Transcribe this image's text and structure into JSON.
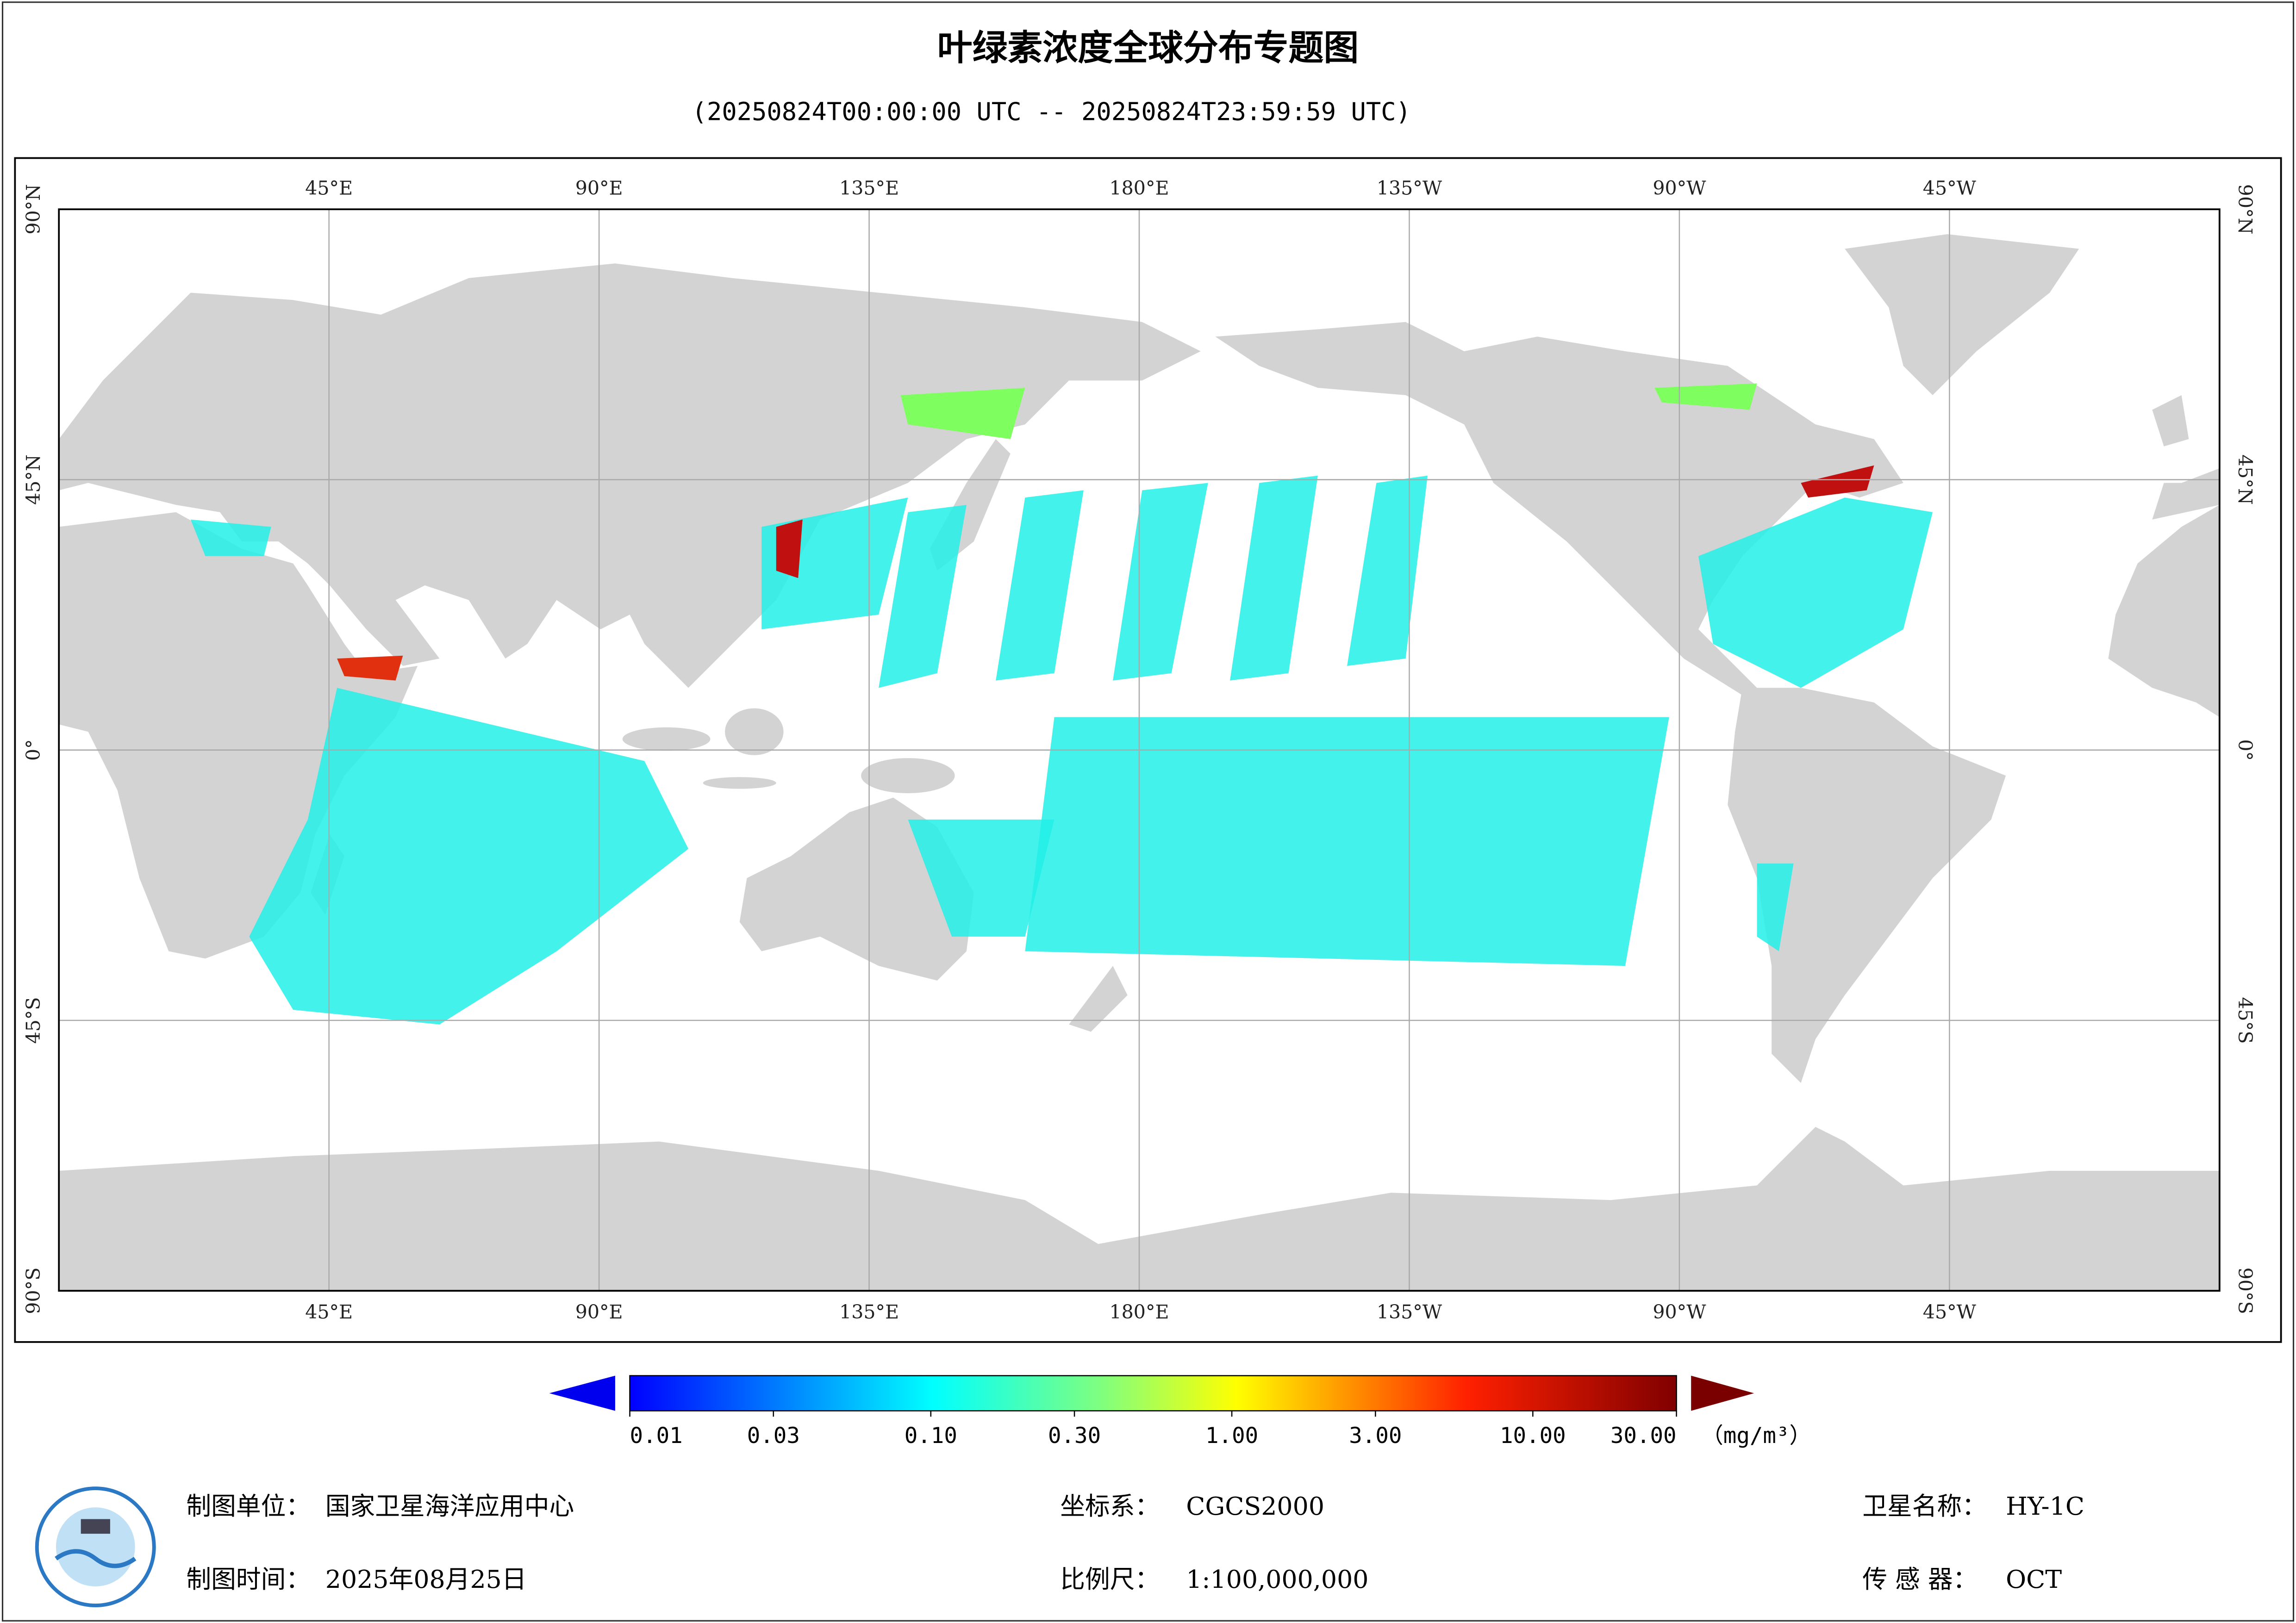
{
  "header": {
    "title": "叶绿素浓度全球分布专题图",
    "subtitle": "(20250824T00:00:00 UTC -- 20250824T23:59:59 UTC)"
  },
  "map": {
    "lon_ticks": [
      {
        "value": 45,
        "label": "45°E"
      },
      {
        "value": 90,
        "label": "90°E"
      },
      {
        "value": 135,
        "label": "135°E"
      },
      {
        "value": 180,
        "label": "180°E"
      },
      {
        "value": 225,
        "label": "135°W"
      },
      {
        "value": 270,
        "label": "90°W"
      },
      {
        "value": 315,
        "label": "45°W"
      }
    ],
    "lat_ticks": [
      {
        "value": 90,
        "label": "90°N"
      },
      {
        "value": 45,
        "label": "45°N"
      },
      {
        "value": 0,
        "label": "0°"
      },
      {
        "value": -45,
        "label": "45°S"
      },
      {
        "value": -90,
        "label": "90°S"
      }
    ]
  },
  "colorbar": {
    "ticks": [
      0.01,
      0.03,
      {
        "value": 0.1,
        "label": "0.10"
      },
      {
        "value": 0.3,
        "label": "0.30"
      },
      {
        "value": 1,
        "label": "1.00"
      },
      {
        "value": 3,
        "label": "3.00"
      },
      {
        "value": 10,
        "label": "10.00"
      },
      {
        "value": 30,
        "label": "30.00"
      }
    ],
    "unit": "（mg/m³）"
  },
  "footer": {
    "unit_label": "制图单位：",
    "unit": "国家卫星海洋应用中心",
    "time_label": "制图时间：",
    "time": "2025年08月25日",
    "crs_label": "坐标系：",
    "crs": "CGCS2000",
    "scale_label": "比例尺：",
    "scale": "1:100,000,000",
    "satellite_label": "卫星名称：",
    "satellite": "HY-1C",
    "sensor_label": "传 感 器：",
    "sensor": "OCT"
  }
}
